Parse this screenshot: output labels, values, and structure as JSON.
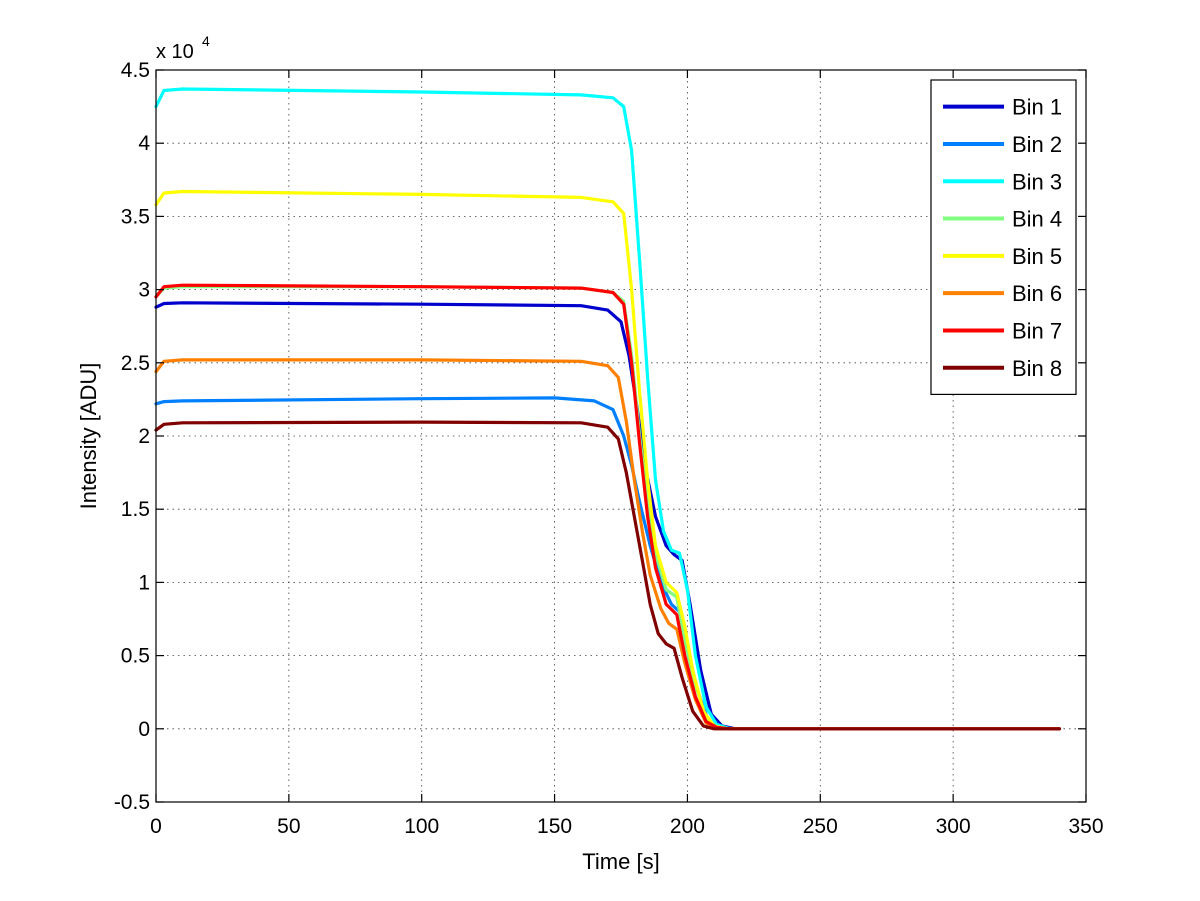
{
  "chart_data": {
    "type": "line",
    "title": "",
    "xlabel": "Time [s]",
    "ylabel": "Intensity [ADU]",
    "y_exponent_label": "x 10",
    "y_exponent_power": "4",
    "xlim": [
      0,
      350
    ],
    "ylim": [
      -0.5,
      4.5
    ],
    "x_ticks": [
      0,
      50,
      100,
      150,
      200,
      250,
      300,
      350
    ],
    "x_tick_labels": [
      "0",
      "50",
      "100",
      "150",
      "200",
      "250",
      "300",
      "350"
    ],
    "y_ticks": [
      -0.5,
      0,
      0.5,
      1,
      1.5,
      2,
      2.5,
      3,
      3.5,
      4,
      4.5
    ],
    "y_tick_labels": [
      "-0.5",
      "0",
      "0.5",
      "1",
      "1.5",
      "2",
      "2.5",
      "3",
      "3.5",
      "4",
      "4.5"
    ],
    "grid": true,
    "legend_position": "top-right",
    "series": [
      {
        "name": "Bin 1",
        "color": "#0000cc",
        "x": [
          0,
          3,
          10,
          100,
          160,
          170,
          175,
          178,
          181,
          184,
          188,
          192,
          195,
          198,
          201,
          205,
          209,
          213,
          218,
          230,
          340
        ],
        "y": [
          2.88,
          2.905,
          2.91,
          2.9,
          2.89,
          2.86,
          2.78,
          2.55,
          2.2,
          1.8,
          1.45,
          1.25,
          1.19,
          1.15,
          0.85,
          0.4,
          0.1,
          0.02,
          0.0,
          0.0,
          0.0
        ]
      },
      {
        "name": "Bin 2",
        "color": "#0080ff",
        "x": [
          0,
          3,
          10,
          100,
          150,
          165,
          172,
          176,
          179,
          182,
          186,
          190,
          194,
          197,
          200,
          204,
          208,
          212,
          218,
          230,
          340
        ],
        "y": [
          2.22,
          2.235,
          2.24,
          2.255,
          2.26,
          2.24,
          2.18,
          2.0,
          1.8,
          1.55,
          1.25,
          1.0,
          0.85,
          0.8,
          0.55,
          0.25,
          0.05,
          0.01,
          0.0,
          0.0,
          0.0
        ]
      },
      {
        "name": "Bin 3",
        "color": "#00ffff",
        "x": [
          0,
          3,
          10,
          100,
          160,
          172,
          176,
          179,
          182,
          185,
          188,
          191,
          194,
          197,
          200,
          203,
          207,
          211,
          216,
          230,
          340
        ],
        "y": [
          4.25,
          4.36,
          4.37,
          4.35,
          4.33,
          4.31,
          4.25,
          3.95,
          3.2,
          2.4,
          1.7,
          1.35,
          1.22,
          1.2,
          0.95,
          0.5,
          0.15,
          0.03,
          0.0,
          0.0,
          0.0
        ]
      },
      {
        "name": "Bin 4",
        "color": "#80ff80",
        "x": [
          0,
          3,
          10,
          100,
          160,
          172,
          176,
          179,
          182,
          185,
          188,
          192,
          196,
          199,
          203,
          207,
          211,
          216,
          230,
          340
        ],
        "y": [
          2.95,
          3.01,
          3.02,
          3.02,
          3.01,
          2.98,
          2.92,
          2.55,
          2.0,
          1.55,
          1.2,
          0.95,
          0.9,
          0.6,
          0.3,
          0.08,
          0.01,
          0.0,
          0.0,
          0.0
        ]
      },
      {
        "name": "Bin 5",
        "color": "#ffff00",
        "x": [
          0,
          3,
          10,
          100,
          160,
          172,
          176,
          179,
          182,
          185,
          188,
          192,
          196,
          199,
          202,
          206,
          210,
          215,
          230,
          340
        ],
        "y": [
          3.58,
          3.66,
          3.67,
          3.65,
          3.63,
          3.6,
          3.52,
          3.0,
          2.3,
          1.7,
          1.25,
          1.0,
          0.93,
          0.7,
          0.4,
          0.12,
          0.02,
          0.0,
          0.0,
          0.0
        ]
      },
      {
        "name": "Bin 6",
        "color": "#ff8000",
        "x": [
          0,
          3,
          10,
          100,
          160,
          170,
          174,
          177,
          180,
          183,
          186,
          190,
          193,
          196,
          199,
          203,
          207,
          211,
          216,
          230,
          340
        ],
        "y": [
          2.44,
          2.51,
          2.52,
          2.52,
          2.51,
          2.48,
          2.4,
          2.1,
          1.7,
          1.35,
          1.05,
          0.82,
          0.72,
          0.68,
          0.45,
          0.2,
          0.04,
          0.0,
          0.0,
          0.0,
          0.0
        ]
      },
      {
        "name": "Bin 7",
        "color": "#ff0000",
        "x": [
          0,
          3,
          10,
          100,
          160,
          172,
          176,
          179,
          182,
          185,
          188,
          192,
          196,
          199,
          203,
          207,
          211,
          216,
          230,
          340
        ],
        "y": [
          2.95,
          3.02,
          3.03,
          3.02,
          3.01,
          2.98,
          2.9,
          2.5,
          1.95,
          1.45,
          1.1,
          0.85,
          0.78,
          0.5,
          0.22,
          0.05,
          0.01,
          0.0,
          0.0,
          0.0
        ]
      },
      {
        "name": "Bin 8",
        "color": "#800000",
        "x": [
          0,
          3,
          10,
          100,
          160,
          170,
          174,
          177,
          180,
          183,
          186,
          189,
          192,
          195,
          198,
          202,
          206,
          210,
          215,
          230,
          340
        ],
        "y": [
          2.04,
          2.08,
          2.09,
          2.095,
          2.09,
          2.06,
          1.98,
          1.75,
          1.45,
          1.15,
          0.85,
          0.65,
          0.58,
          0.55,
          0.35,
          0.12,
          0.02,
          0.0,
          0.0,
          0.0,
          0.0
        ]
      }
    ]
  }
}
